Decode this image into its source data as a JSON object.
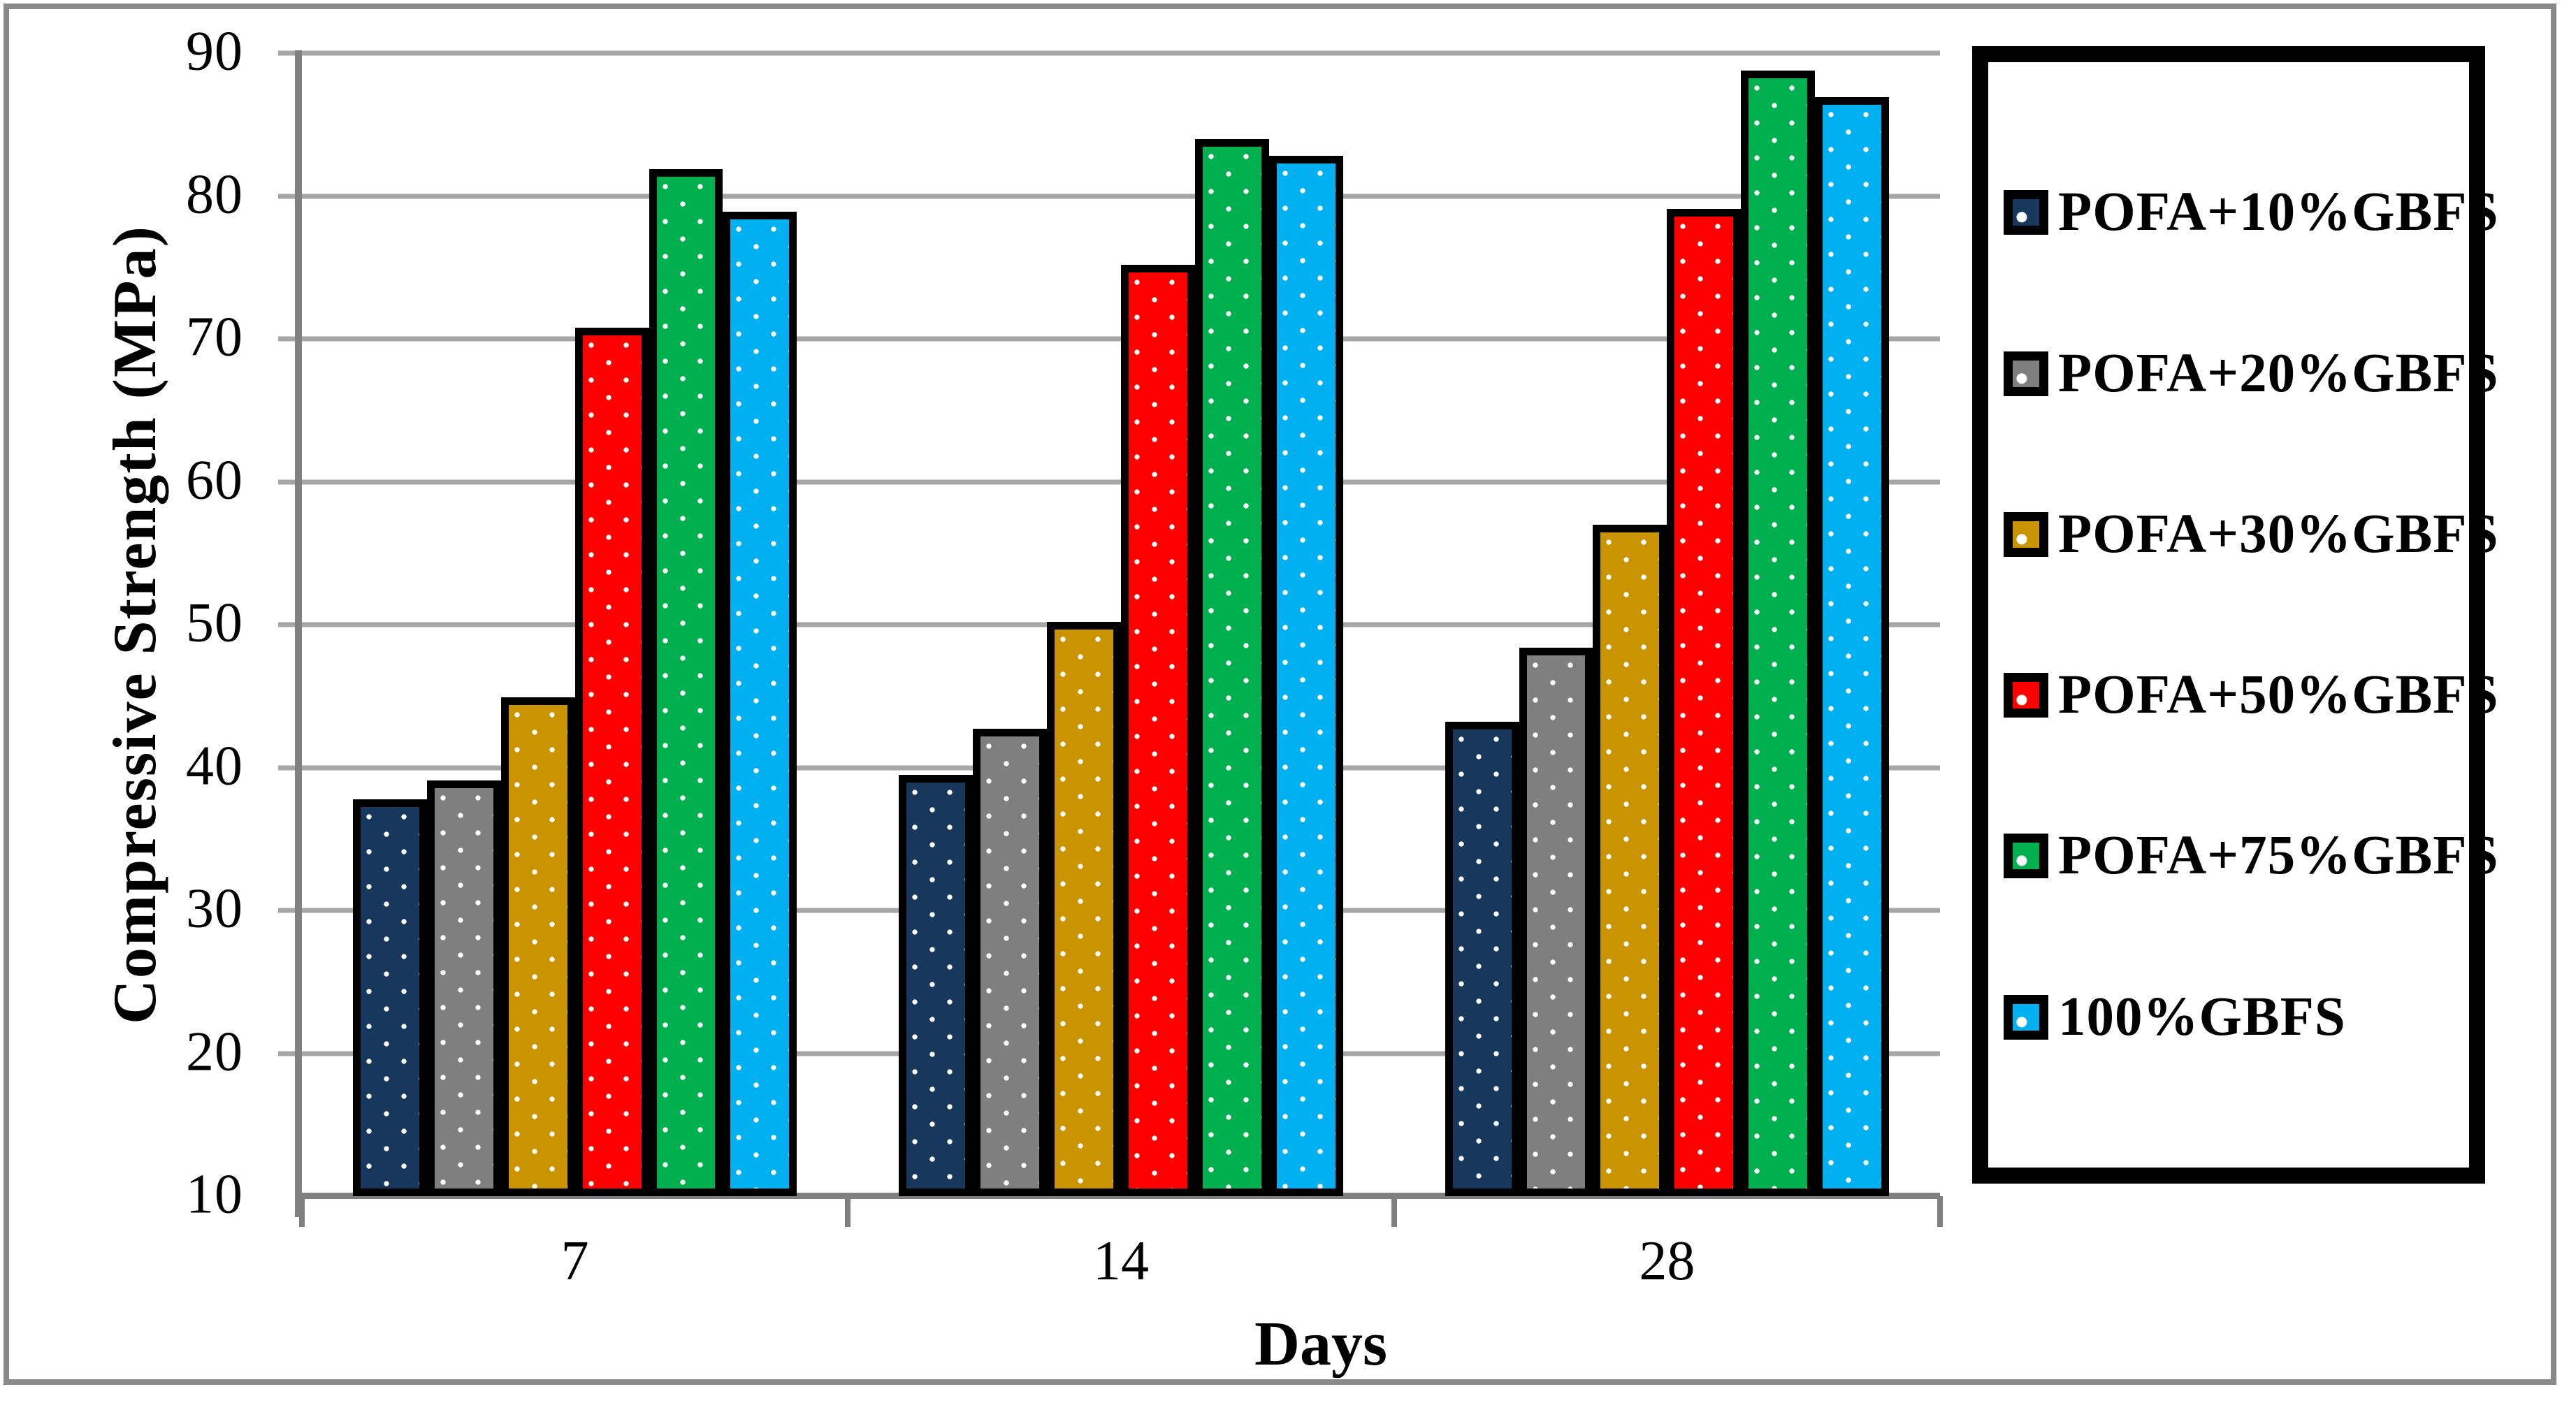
{
  "chart_data": {
    "type": "bar",
    "title": "",
    "xlabel": "Days",
    "ylabel": "Compressive Strength (MPa)",
    "categories": [
      "7",
      "14",
      "28"
    ],
    "series": [
      {
        "name": "POFA+10%GBFS",
        "color": "#17375D",
        "values": [
          37.8,
          39.5,
          43.2
        ]
      },
      {
        "name": "POFA+20%GBFS",
        "color": "#7F7F7F",
        "values": [
          39.1,
          42.7,
          48.4
        ]
      },
      {
        "name": "POFA+30%GBFS",
        "color": "#C99400",
        "values": [
          44.9,
          50.2,
          57.0
        ]
      },
      {
        "name": "POFA+50%GBFS",
        "color": "#FF0000",
        "values": [
          70.8,
          75.2,
          79.1
        ]
      },
      {
        "name": "POFA+75%GBFS",
        "color": "#00B04E",
        "values": [
          81.9,
          84.0,
          88.8
        ]
      },
      {
        "name": "100%GBFS",
        "color": "#00B0F0",
        "values": [
          78.9,
          82.8,
          86.9
        ]
      }
    ],
    "ylim": [
      10,
      90
    ],
    "ytick_step": 10,
    "grid": true,
    "gridline_color": "#A6A6A6",
    "axis_color": "#808080",
    "bar_outline_color": "#000000",
    "pattern": "white-dots",
    "legend_position": "right"
  }
}
